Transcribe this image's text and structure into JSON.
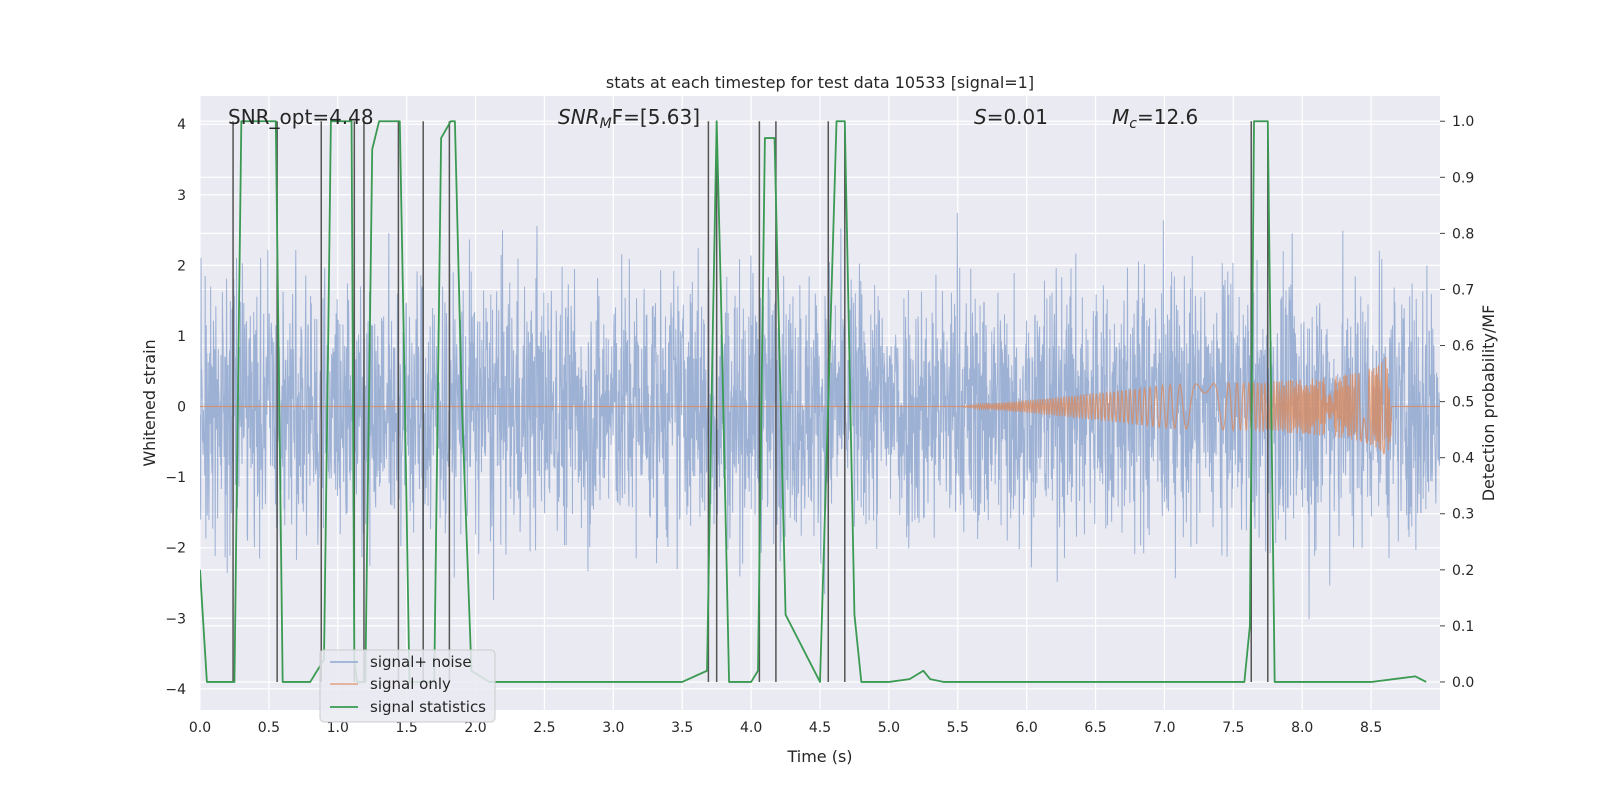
{
  "chart_data": {
    "type": "line",
    "title": "stats at each timestep for test data 10533 [signal=1]",
    "xlabel": "Time (s)",
    "ylabel": "Whitened strain",
    "ylabel_right": "Detection probability/MF",
    "xlim": [
      0.0,
      9.0
    ],
    "ylim": [
      -4.3,
      4.4
    ],
    "ylim_right": [
      -0.05,
      1.045
    ],
    "xticks": [
      "0.0",
      "0.5",
      "1.0",
      "1.5",
      "2.0",
      "2.5",
      "3.0",
      "3.5",
      "4.0",
      "4.5",
      "5.0",
      "5.5",
      "6.0",
      "6.5",
      "7.0",
      "7.5",
      "8.0",
      "8.5"
    ],
    "yticks": [
      "4",
      "3",
      "2",
      "1",
      "0",
      "−1",
      "−2",
      "−3",
      "−4"
    ],
    "yticks_right": [
      "1.0",
      "0.9",
      "0.8",
      "0.7",
      "0.6",
      "0.5",
      "0.4",
      "0.3",
      "0.2",
      "0.1",
      "0.0"
    ],
    "annotations": {
      "snr_opt": "SNR_opt=4.48",
      "snr_mf_main": "SNR",
      "snr_mf_sub": "M",
      "snr_mf_rest": "F=[5.63]",
      "s_main": "S",
      "s_rest": "=0.01",
      "mc_main": "M",
      "mc_sub": "c",
      "mc_rest": "=12.6"
    },
    "legend": {
      "placement": "lower-left",
      "entries": [
        "signal+ noise",
        "signal only",
        "signal statistics"
      ]
    },
    "colors": {
      "noise": "#8fa7cf",
      "signal": "#dd8452",
      "stats": "#3a9a52",
      "vlines": "#555555",
      "background": "#eaeaf2"
    },
    "grid": true,
    "series": [
      {
        "name": "signal+ noise",
        "note_values": "noise amplitude envelope ~±2.5 with spikes up to ~3.7",
        "values_summary": {
          "min": -3.8,
          "max": 3.7
        }
      },
      {
        "name": "signal only",
        "chirp_start": 5.5,
        "chirp_peak_time": 8.65,
        "chirp_peak_amplitude": 1.0
      },
      {
        "name": "signal statistics",
        "x": [
          0.0,
          0.05,
          0.25,
          0.3,
          0.55,
          0.6,
          0.65,
          0.7,
          0.8,
          0.9,
          0.93,
          0.95,
          1.1,
          1.12,
          1.14,
          1.2,
          1.25,
          1.3,
          1.45,
          1.48,
          1.52,
          1.7,
          1.75,
          1.82,
          1.85,
          1.9,
          1.97,
          2.1,
          2.5,
          3.0,
          3.5,
          3.68,
          3.72,
          3.75,
          3.78,
          3.84,
          4.0,
          4.05,
          4.1,
          4.17,
          4.25,
          4.5,
          4.62,
          4.64,
          4.68,
          4.75,
          4.8,
          5.0,
          5.15,
          5.25,
          5.3,
          5.4,
          5.55,
          6.0,
          7.0,
          7.58,
          7.62,
          7.65,
          7.75,
          7.8,
          8.0,
          8.5,
          8.82,
          8.9
        ],
        "values": [
          0.2,
          0.0,
          0.0,
          1.0,
          1.0,
          0.0,
          0.0,
          0.0,
          0.0,
          0.04,
          0.6,
          1.0,
          1.0,
          0.04,
          0.0,
          0.0,
          0.95,
          1.0,
          1.0,
          0.6,
          0.0,
          0.0,
          0.97,
          1.0,
          1.0,
          0.5,
          0.02,
          0.0,
          0.0,
          0.0,
          0.0,
          0.02,
          0.6,
          1.0,
          0.7,
          0.0,
          0.0,
          0.02,
          0.97,
          0.97,
          0.12,
          0.0,
          1.0,
          1.0,
          1.0,
          0.12,
          0.0,
          0.0,
          0.005,
          0.02,
          0.005,
          0.0,
          0.0,
          0.0,
          0.0,
          0.0,
          0.1,
          1.0,
          1.0,
          0.0,
          0.0,
          0.0,
          0.01,
          0.0
        ]
      }
    ],
    "vertical_lines_x": [
      0.24,
      0.56,
      0.88,
      1.12,
      1.19,
      1.44,
      1.62,
      1.81,
      3.69,
      3.75,
      4.06,
      4.18,
      4.56,
      4.68,
      7.63,
      7.75
    ]
  }
}
